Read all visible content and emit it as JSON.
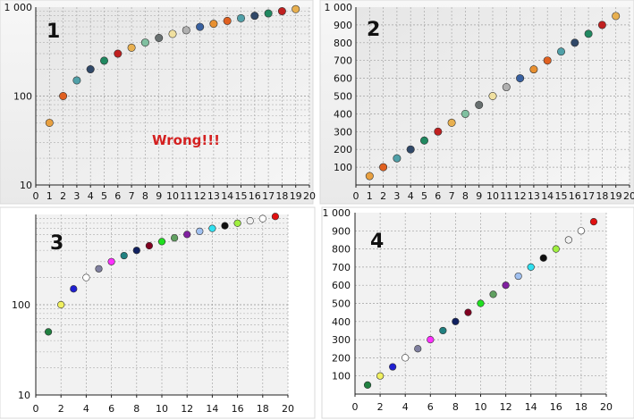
{
  "chart_data": [
    {
      "type": "scatter",
      "label": "1",
      "annotation": "Wrong!!!",
      "y_scale": "log",
      "xlim": [
        0,
        20
      ],
      "ylim": [
        10,
        1000
      ],
      "x_ticks": [
        0,
        1,
        2,
        3,
        4,
        5,
        6,
        7,
        8,
        9,
        10,
        11,
        12,
        13,
        14,
        15,
        16,
        17,
        18,
        19,
        20
      ],
      "x_tick_labels": [
        "0",
        "1",
        "2",
        "3",
        "4",
        "5",
        "6",
        "7",
        "8",
        "9",
        "10",
        "11",
        "12",
        "13",
        "14",
        "15",
        "16",
        "17",
        "18",
        "19",
        "20"
      ],
      "y_ticks": [
        10,
        100,
        1000
      ],
      "y_tick_labels": [
        "10",
        "100",
        "1 000"
      ],
      "background": "#ececec",
      "grid": true,
      "x": [
        1,
        2,
        3,
        4,
        5,
        6,
        7,
        8,
        9,
        10,
        11,
        12,
        13,
        14,
        15,
        16,
        17,
        18,
        19
      ],
      "y": [
        50,
        100,
        150,
        200,
        250,
        300,
        350,
        400,
        450,
        500,
        550,
        600,
        650,
        700,
        750,
        800,
        850,
        900,
        950
      ],
      "colors": [
        "#e8a040",
        "#e06020",
        "#50a0a8",
        "#304868",
        "#208860",
        "#c02020",
        "#e8b050",
        "#80c0a0",
        "#687070",
        "#f0e0a0",
        "#b0b0b0",
        "#3860a0",
        "#e89030",
        "#e06020",
        "#50a0a8",
        "#304868",
        "#208860",
        "#c02020",
        "#e8b050"
      ]
    },
    {
      "type": "scatter",
      "label": "2",
      "y_scale": "linear",
      "xlim": [
        0,
        20
      ],
      "ylim": [
        0,
        1000
      ],
      "x_ticks": [
        0,
        1,
        2,
        3,
        4,
        5,
        6,
        7,
        8,
        9,
        10,
        11,
        12,
        13,
        14,
        15,
        16,
        17,
        18,
        19,
        20
      ],
      "x_tick_labels": [
        "0",
        "1",
        "2",
        "3",
        "4",
        "5",
        "6",
        "7",
        "8",
        "9",
        "10",
        "11",
        "12",
        "13",
        "14",
        "15",
        "16",
        "17",
        "18",
        "19",
        "20"
      ],
      "y_ticks": [
        100,
        200,
        300,
        400,
        500,
        600,
        700,
        800,
        900,
        1000
      ],
      "y_tick_labels": [
        "100",
        "200",
        "300",
        "400",
        "500",
        "600",
        "700",
        "800",
        "900",
        "1 000"
      ],
      "background": "#ececec",
      "grid": true,
      "x": [
        1,
        2,
        3,
        4,
        5,
        6,
        7,
        8,
        9,
        10,
        11,
        12,
        13,
        14,
        15,
        16,
        17,
        18,
        19
      ],
      "y": [
        50,
        100,
        150,
        200,
        250,
        300,
        350,
        400,
        450,
        500,
        550,
        600,
        650,
        700,
        750,
        800,
        850,
        900,
        950
      ],
      "colors": [
        "#e8a040",
        "#e06020",
        "#50a0a8",
        "#304868",
        "#208860",
        "#c02020",
        "#e8b050",
        "#80c0a0",
        "#687070",
        "#f0e0a0",
        "#b0b0b0",
        "#3860a0",
        "#e89030",
        "#e06020",
        "#50a0a8",
        "#304868",
        "#208860",
        "#c02020",
        "#e8b050"
      ]
    },
    {
      "type": "scatter",
      "label": "3",
      "y_scale": "log",
      "xlim": [
        0,
        20
      ],
      "ylim": [
        10,
        1000
      ],
      "x_ticks": [
        0,
        2,
        4,
        6,
        8,
        10,
        12,
        14,
        16,
        18,
        20
      ],
      "x_tick_labels": [
        "0",
        "2",
        "4",
        "6",
        "8",
        "10",
        "12",
        "14",
        "16",
        "18",
        "20"
      ],
      "y_ticks": [
        10,
        100,
        1000
      ],
      "y_tick_labels": [
        "10",
        "100",
        ""
      ],
      "background": "#f2f2f2",
      "grid": true,
      "x": [
        1,
        2,
        3,
        4,
        5,
        6,
        7,
        8,
        9,
        10,
        11,
        12,
        13,
        14,
        15,
        16,
        17,
        18,
        19
      ],
      "y": [
        50,
        100,
        150,
        200,
        250,
        300,
        350,
        400,
        450,
        500,
        550,
        600,
        650,
        700,
        750,
        800,
        850,
        900,
        950
      ],
      "colors": [
        "#208040",
        "#f0f060",
        "#2020d0",
        "#ffffff",
        "#8080a0",
        "#ff30ff",
        "#208080",
        "#102060",
        "#800020",
        "#20e020",
        "#60a060",
        "#8020a0",
        "#a0c0f0",
        "#30e0f0",
        "#101010",
        "#a0f040",
        "#f0f0f0",
        "#ffffff",
        "#e01010"
      ]
    },
    {
      "type": "scatter",
      "label": "4",
      "y_scale": "linear",
      "xlim": [
        0,
        20
      ],
      "ylim": [
        0,
        1000
      ],
      "x_ticks": [
        0,
        2,
        4,
        6,
        8,
        10,
        12,
        14,
        16,
        18,
        20
      ],
      "x_tick_labels": [
        "0",
        "2",
        "4",
        "6",
        "8",
        "10",
        "12",
        "14",
        "16",
        "18",
        "20"
      ],
      "y_ticks": [
        100,
        200,
        300,
        400,
        500,
        600,
        700,
        800,
        900,
        1000
      ],
      "y_tick_labels": [
        "100",
        "200",
        "300",
        "400",
        "500",
        "600",
        "700",
        "800",
        "900",
        "1 000"
      ],
      "background": "#f2f2f2",
      "grid": true,
      "x": [
        1,
        2,
        3,
        4,
        5,
        6,
        7,
        8,
        9,
        10,
        11,
        12,
        13,
        14,
        15,
        16,
        17,
        18,
        19
      ],
      "y": [
        50,
        100,
        150,
        200,
        250,
        300,
        350,
        400,
        450,
        500,
        550,
        600,
        650,
        700,
        750,
        800,
        850,
        900,
        950
      ],
      "colors": [
        "#208040",
        "#f0f060",
        "#2020d0",
        "#ffffff",
        "#8080a0",
        "#ff30ff",
        "#208080",
        "#102060",
        "#800020",
        "#20e020",
        "#60a060",
        "#8020a0",
        "#a0c0f0",
        "#30e0f0",
        "#101010",
        "#a0f040",
        "#f0f0f0",
        "#ffffff",
        "#e01010"
      ]
    }
  ]
}
